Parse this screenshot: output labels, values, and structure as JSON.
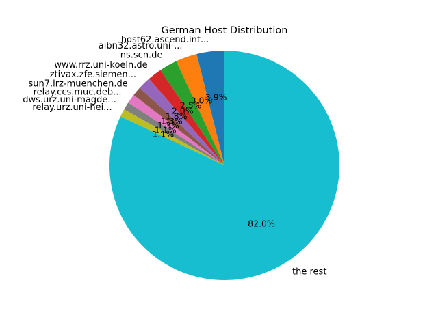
{
  "chart_data": {
    "type": "pie",
    "title": "German Host Distribution",
    "start_angle_deg": 90,
    "direction": "counterclockwise",
    "slices": [
      {
        "label": "host62.ascend.int...",
        "value": 3.9,
        "pct_label": "3.9%",
        "color": "#1f77b4"
      },
      {
        "label": "aibn32.astro.uni-...",
        "value": 3.0,
        "pct_label": "3.0%",
        "color": "#ff7f0e"
      },
      {
        "label": "ns.scn.de",
        "value": 2.5,
        "pct_label": "2.5%",
        "color": "#2ca02c"
      },
      {
        "label": "www.rrz.uni-koeln.de",
        "value": 2.0,
        "pct_label": "2.0%",
        "color": "#d62728"
      },
      {
        "label": "ztivax.zfe.siemen...",
        "value": 1.8,
        "pct_label": "1.8%",
        "color": "#9467bd"
      },
      {
        "label": "sun7.lrz-muenchen.de",
        "value": 1.3,
        "pct_label": "1.3%",
        "color": "#8c564b"
      },
      {
        "label": "relay.ccs.muc.deb...",
        "value": 1.3,
        "pct_label": "1.3%",
        "color": "#e377c2"
      },
      {
        "label": "dws.urz.uni-magde...",
        "value": 1.1,
        "pct_label": "1.1%",
        "color": "#7f7f7f"
      },
      {
        "label": "relay.urz.uni-hei...",
        "value": 1.1,
        "pct_label": "1.1%",
        "color": "#bcbd22"
      },
      {
        "label": "the rest",
        "value": 82.0,
        "pct_label": "82.0%",
        "color": "#17becf"
      }
    ]
  }
}
